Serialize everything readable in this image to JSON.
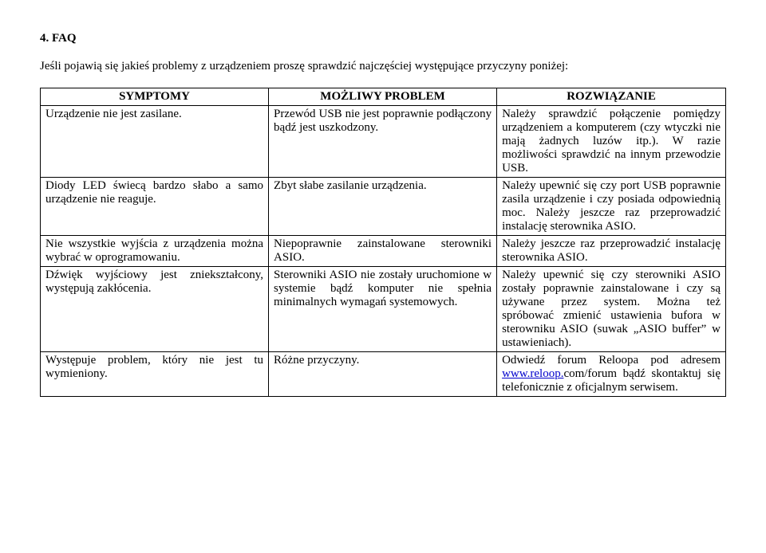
{
  "heading": "4.   FAQ",
  "intro": "Jeśli pojawią się jakieś problemy z urządzeniem proszę sprawdzić najczęściej występujące przyczyny poniżej:",
  "table": {
    "headers": [
      "SYMPTOMY",
      "MOŻLIWY PROBLEM",
      "ROZWIĄZANIE"
    ],
    "rows": [
      {
        "symptom": "Urządzenie nie jest zasilane.",
        "problem": "Przewód USB nie jest poprawnie podłączony bądź jest uszkodzony.",
        "solution": "Należy sprawdzić połączenie pomiędzy urządzeniem a komputerem (czy wtyczki nie mają żadnych luzów itp.). W razie możliwości sprawdzić na innym przewodzie USB."
      },
      {
        "symptom": "Diody LED świecą bardzo słabo a samo urządzenie nie reaguje.",
        "problem": "Zbyt słabe zasilanie urządzenia.",
        "solution": "Należy upewnić się czy port USB poprawnie zasila urządzenie i czy posiada odpowiednią moc.\nNależy jeszcze raz przeprowadzić instalację sterownika ASIO."
      },
      {
        "symptom": "Nie wszystkie wyjścia z urządzenia można wybrać w oprogramowaniu.",
        "problem": "Niepoprawnie zainstalowane sterowniki ASIO.",
        "solution": "Należy jeszcze raz przeprowadzić instalację sterownika ASIO."
      },
      {
        "symptom": "Dźwięk wyjściowy jest zniekształcony, występują zakłócenia.",
        "problem": "Sterowniki ASIO nie zostały uruchomione w systemie bądź komputer nie spełnia minimalnych wymagań systemowych.",
        "solution": "Należy upewnić się czy sterowniki ASIO zostały poprawnie zainstalowane i czy są używane przez system. Można też spróbować zmienić ustawienia bufora w sterowniku ASIO (suwak „ASIO buffer” w ustawieniach)."
      },
      {
        "symptom": "Występuje problem, który nie jest tu wymieniony.",
        "problem": "Różne przyczyny.",
        "solution_prefix": "Odwiedź forum Reloopa pod adresem ",
        "link_text": "www.reloop.",
        "link_tail": "com/forum",
        "solution_suffix": " bądź skontaktuj się telefonicznie z oficjalnym serwisem."
      }
    ]
  }
}
